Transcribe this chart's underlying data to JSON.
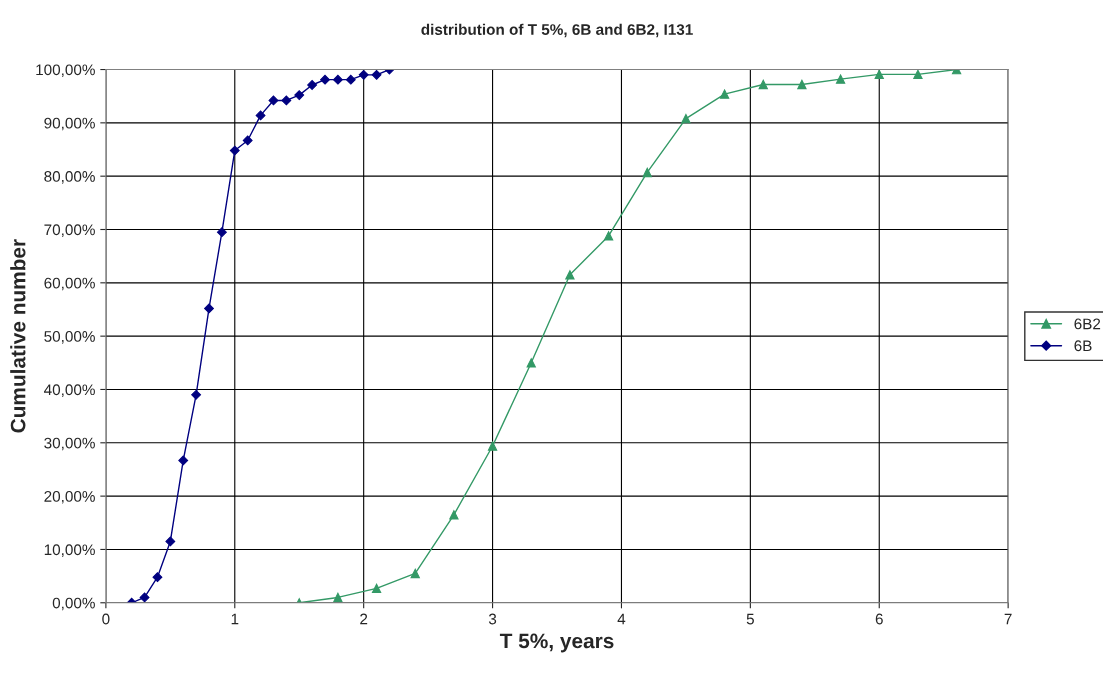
{
  "chart_data": {
    "type": "line",
    "title": "distribution of T 5%, 6B and 6B2, I131",
    "xlabel": "T 5%, years",
    "ylabel": "Cumulative number",
    "xlim": [
      0,
      7
    ],
    "xticks": [
      0,
      1,
      2,
      3,
      4,
      5,
      6,
      7
    ],
    "ylim": [
      0,
      100
    ],
    "yticks": [
      {
        "value": 0,
        "label": "0,00%"
      },
      {
        "value": 10,
        "label": "10,00%"
      },
      {
        "value": 20,
        "label": "20,00%"
      },
      {
        "value": 30,
        "label": "30,00%"
      },
      {
        "value": 40,
        "label": "40,00%"
      },
      {
        "value": 50,
        "label": "50,00%"
      },
      {
        "value": 60,
        "label": "60,00%"
      },
      {
        "value": 70,
        "label": "70,00%"
      },
      {
        "value": 80,
        "label": "80,00%"
      },
      {
        "value": 90,
        "label": "90,00%"
      },
      {
        "value": 100,
        "label": "100,00%"
      }
    ],
    "grid": true,
    "legend": "right",
    "series": [
      {
        "name": "6B2",
        "color": "#339966",
        "marker": "triangle",
        "x": [
          1.5,
          1.8,
          2.1,
          2.4,
          2.7,
          3.0,
          3.3,
          3.6,
          3.9,
          4.2,
          4.5,
          4.8,
          5.1,
          5.4,
          5.7,
          6.0,
          6.3,
          6.6
        ],
        "values": [
          0,
          1,
          2.7,
          5.5,
          16.5,
          29.4,
          45,
          61.5,
          68.8,
          80.7,
          90.8,
          95.4,
          97.2,
          97.2,
          98.2,
          99.1,
          99.1,
          100
        ]
      },
      {
        "name": "6B",
        "color": "#000080",
        "marker": "diamond",
        "x": [
          0.2,
          0.3,
          0.4,
          0.5,
          0.6,
          0.7,
          0.8,
          0.9,
          1.0,
          1.1,
          1.2,
          1.3,
          1.4,
          1.5,
          1.6,
          1.7,
          1.8,
          1.9,
          2.0,
          2.1,
          2.2
        ],
        "values": [
          0,
          1,
          4.8,
          11.5,
          26.7,
          39,
          55.2,
          69.5,
          84.8,
          86.7,
          91.4,
          94.2,
          94.2,
          95.2,
          97.1,
          98.1,
          98.1,
          98.1,
          99,
          99,
          100
        ]
      }
    ]
  }
}
